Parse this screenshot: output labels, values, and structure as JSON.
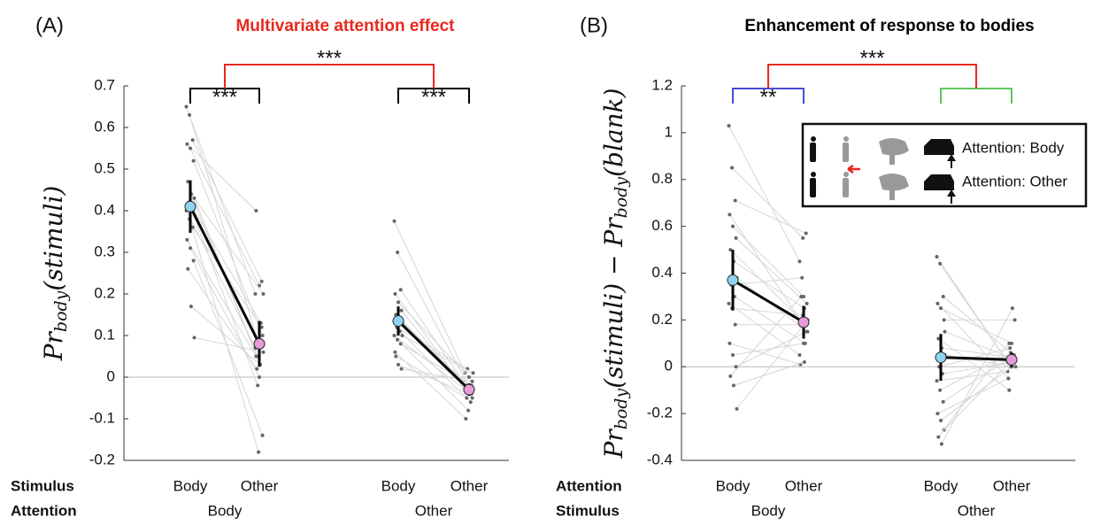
{
  "chart_data": [
    {
      "type": "paired",
      "panel_label": "(A)",
      "title": "Multivariate attention effect",
      "title_color": "#e8281e",
      "ylabel_parts": [
        "Pr",
        "body",
        "(stimuli)"
      ],
      "ylim": [
        -0.2,
        0.7
      ],
      "yticks": [
        -0.2,
        -0.1,
        0,
        0.1,
        0.2,
        0.3,
        0.4,
        0.5,
        0.6,
        0.7
      ],
      "row_labels": [
        "Stimulus",
        "Attention"
      ],
      "colors": [
        "#8fd3f0",
        "#e69bd8"
      ],
      "groups": [
        {
          "label": "Body",
          "conditions": [
            "Body",
            "Other"
          ],
          "means": [
            0.41,
            0.08
          ],
          "errors": [
            0.063,
            0.055
          ],
          "subjects": [
            [
              0.65,
              0.2
            ],
            [
              0.63,
              0.08
            ],
            [
              0.57,
              0.23
            ],
            [
              0.56,
              0.4
            ],
            [
              0.55,
              0.22
            ],
            [
              0.52,
              0.1
            ],
            [
              0.47,
              0.05
            ],
            [
              0.44,
              0.03
            ],
            [
              0.43,
              0.2
            ],
            [
              0.42,
              -0.02
            ],
            [
              0.41,
              0.13
            ],
            [
              0.4,
              0.07
            ],
            [
              0.38,
              -0.18
            ],
            [
              0.36,
              0.12
            ],
            [
              0.33,
              0.05
            ],
            [
              0.31,
              0.0
            ],
            [
              0.28,
              -0.14
            ],
            [
              0.26,
              0.02
            ],
            [
              0.17,
              0.03
            ],
            [
              0.095,
              0.06
            ]
          ]
        },
        {
          "label": "Other",
          "conditions": [
            "Body",
            "Other"
          ],
          "means": [
            0.135,
            -0.03
          ],
          "errors": [
            0.035,
            0.015
          ],
          "subjects": [
            [
              0.375,
              0.01
            ],
            [
              0.3,
              -0.02
            ],
            [
              0.21,
              -0.04
            ],
            [
              0.2,
              -0.03
            ],
            [
              0.18,
              0.0
            ],
            [
              0.16,
              -0.05
            ],
            [
              0.15,
              -0.02
            ],
            [
              0.14,
              -0.04
            ],
            [
              0.13,
              -0.03
            ],
            [
              0.12,
              0.02
            ],
            [
              0.11,
              -0.06
            ],
            [
              0.1,
              -0.03
            ],
            [
              0.09,
              -0.08
            ],
            [
              0.08,
              -0.02
            ],
            [
              0.06,
              -0.1
            ],
            [
              0.03,
              -0.04
            ],
            [
              0.02,
              -0.01
            ],
            [
              0.05,
              -0.05
            ],
            [
              0.13,
              -0.02
            ],
            [
              0.1,
              0.01
            ]
          ]
        }
      ],
      "brackets": [
        {
          "groups": [
            0
          ],
          "label": "***",
          "color": "#000000"
        },
        {
          "groups": [
            1
          ],
          "label": "***",
          "color": "#000000"
        },
        {
          "groups": [
            0,
            1
          ],
          "label": "***",
          "color": "#e8281e"
        }
      ]
    },
    {
      "type": "paired",
      "panel_label": "(B)",
      "title": "Enhancement of response to bodies",
      "title_color": "#000000",
      "ylabel_parts": [
        "Pr",
        "body",
        "(stimuli) − Pr",
        "body",
        "(blank)"
      ],
      "ylim": [
        -0.4,
        1.2
      ],
      "yticks": [
        -0.4,
        -0.2,
        0,
        0.2,
        0.4,
        0.6,
        0.8,
        1,
        1.2
      ],
      "row_labels": [
        "Attention",
        "Stimulus"
      ],
      "colors": [
        "#8fd3f0",
        "#e69bd8"
      ],
      "groups": [
        {
          "label": "Body",
          "conditions": [
            "Body",
            "Other"
          ],
          "means": [
            0.37,
            0.19
          ],
          "errors": [
            0.13,
            0.07
          ],
          "subjects": [
            [
              1.03,
              0.45
            ],
            [
              0.85,
              0.55
            ],
            [
              0.71,
              0.57
            ],
            [
              0.65,
              0.2
            ],
            [
              0.6,
              0.3
            ],
            [
              0.55,
              0.27
            ],
            [
              0.5,
              0.2
            ],
            [
              0.45,
              0.25
            ],
            [
              0.38,
              0.15
            ],
            [
              0.35,
              0.38
            ],
            [
              0.3,
              0.1
            ],
            [
              0.27,
              0.05
            ],
            [
              0.25,
              0.22
            ],
            [
              0.18,
              0.18
            ],
            [
              0.1,
              0.01
            ],
            [
              0.05,
              0.1
            ],
            [
              0.0,
              0.15
            ],
            [
              -0.04,
              0.3
            ],
            [
              -0.08,
              0.02
            ],
            [
              -0.18,
              0.2
            ]
          ]
        },
        {
          "label": "Other",
          "conditions": [
            "Body",
            "Other"
          ],
          "means": [
            0.04,
            0.03
          ],
          "errors": [
            0.1,
            0.03
          ],
          "subjects": [
            [
              0.47,
              0.02
            ],
            [
              0.44,
              0.0
            ],
            [
              0.3,
              0.05
            ],
            [
              0.27,
              -0.05
            ],
            [
              0.25,
              0.1
            ],
            [
              0.2,
              0.2
            ],
            [
              0.12,
              -0.1
            ],
            [
              0.08,
              0.04
            ],
            [
              0.05,
              0.0
            ],
            [
              0.0,
              0.08
            ],
            [
              -0.03,
              0.02
            ],
            [
              -0.06,
              -0.02
            ],
            [
              -0.1,
              0.06
            ],
            [
              -0.15,
              0.05
            ],
            [
              -0.2,
              -0.05
            ],
            [
              -0.23,
              0.0
            ],
            [
              -0.27,
              0.04
            ],
            [
              -0.3,
              0.1
            ],
            [
              -0.33,
              0.25
            ],
            [
              0.15,
              0.03
            ]
          ]
        }
      ],
      "brackets": [
        {
          "groups": [
            0
          ],
          "label": "**",
          "color": "#4a4ad8"
        },
        {
          "groups": [
            1
          ],
          "color": "#5cc85c"
        },
        {
          "groups": [
            0,
            1
          ],
          "label": "***",
          "color": "#e8281e"
        }
      ],
      "legend": [
        "Attention: Body",
        "Attention: Other"
      ]
    }
  ]
}
